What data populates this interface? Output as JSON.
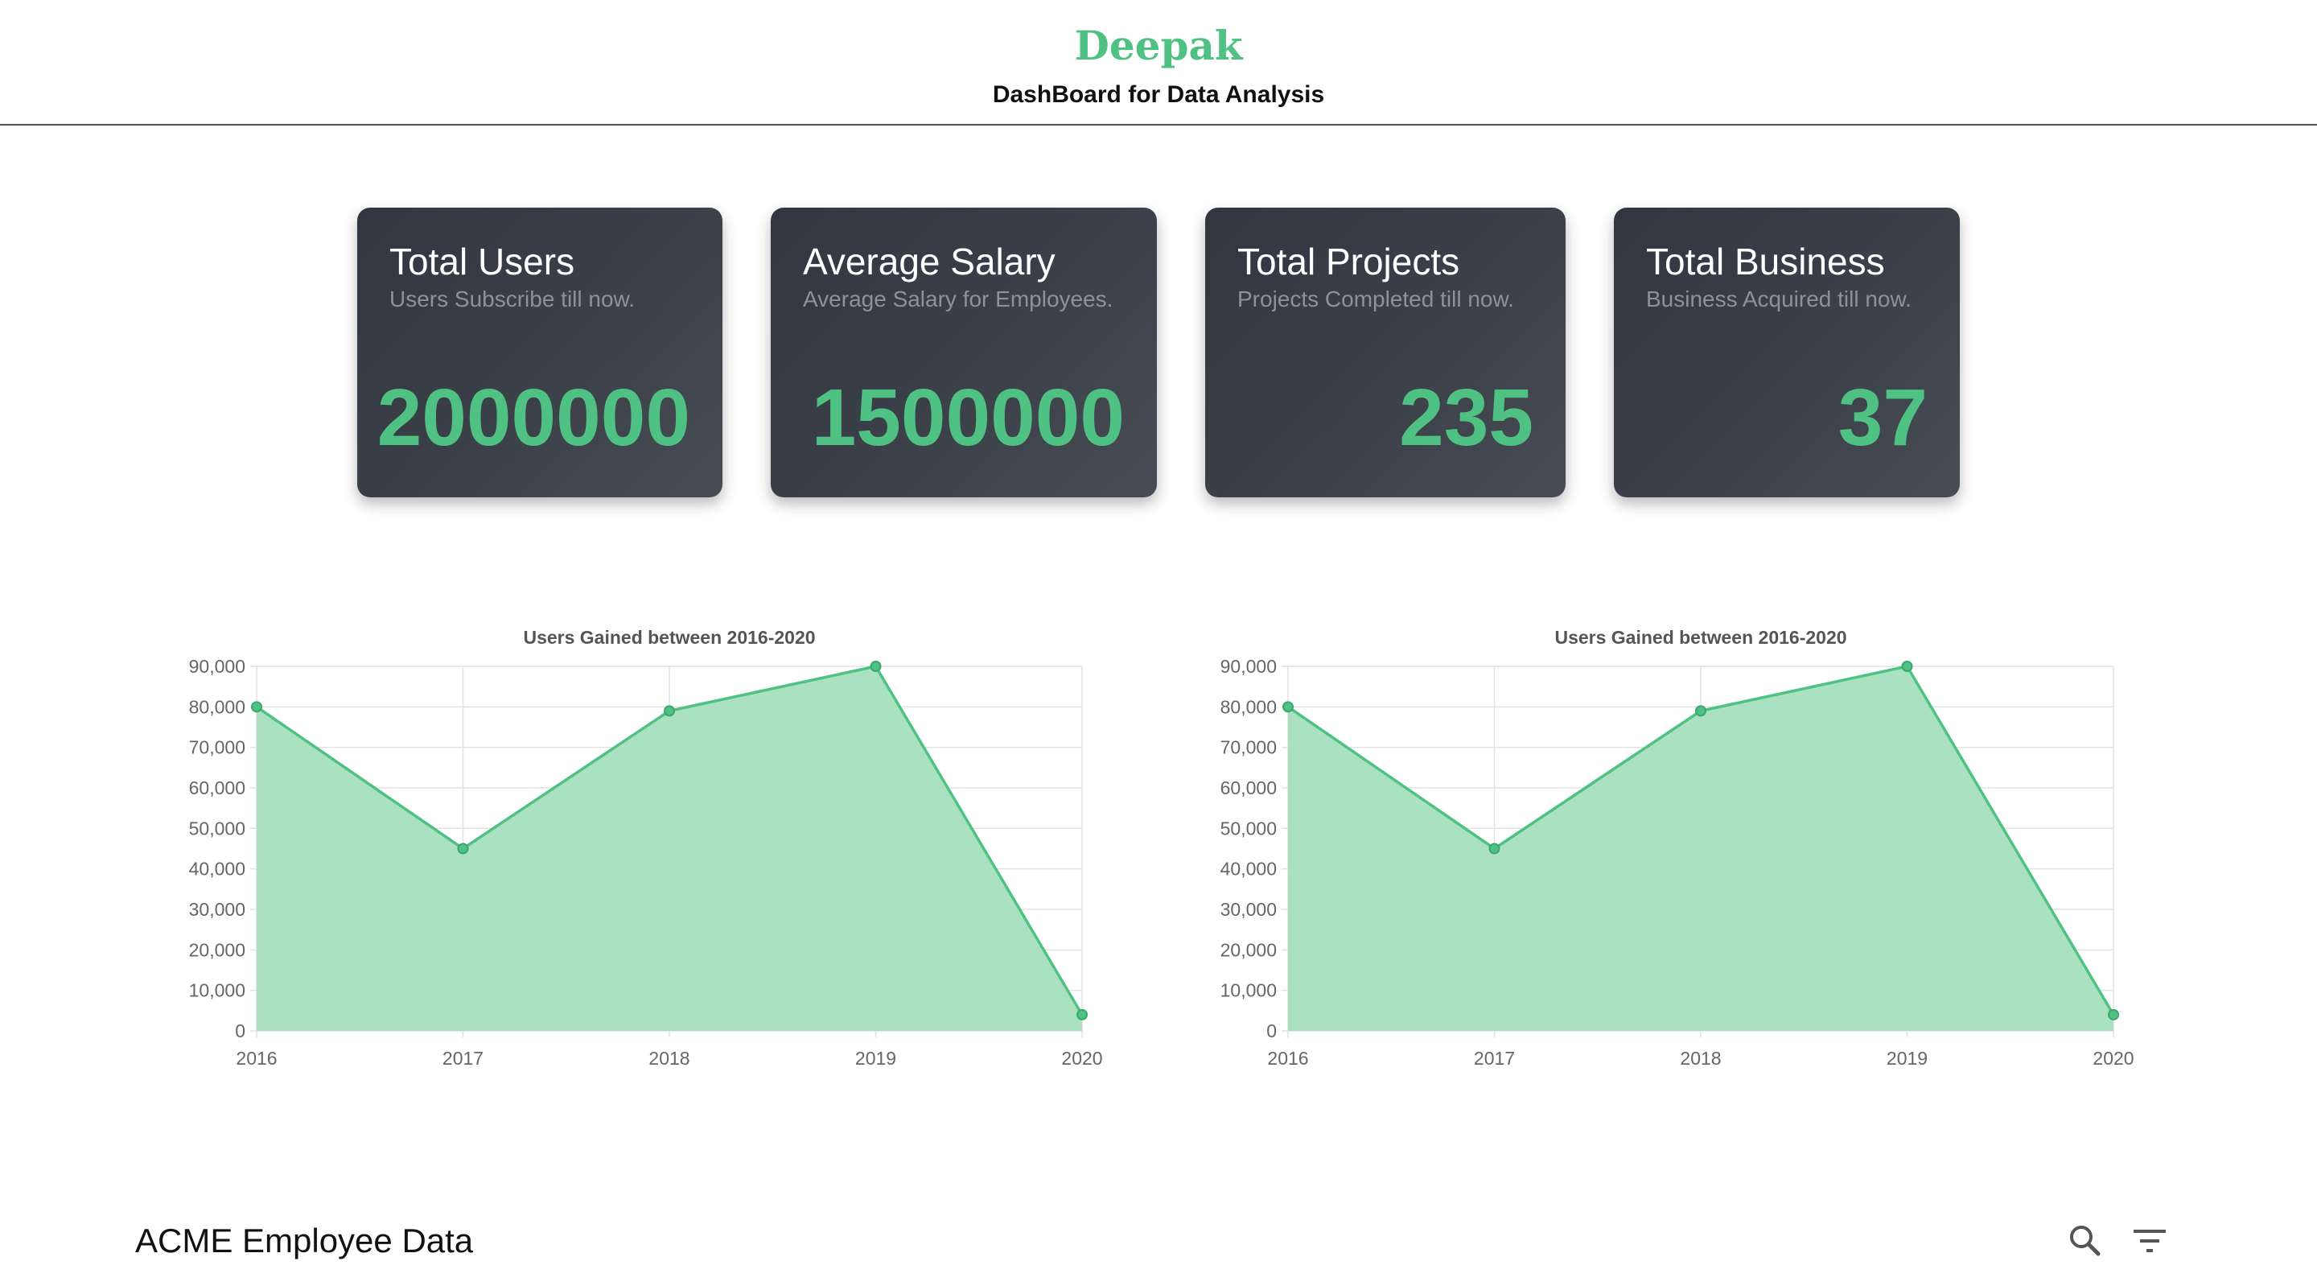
{
  "header": {
    "brand": "Deepak",
    "subtitle": "DashBoard for Data Analysis"
  },
  "cards": [
    {
      "title": "Total Users",
      "subtitle": "Users Subscribe till now.",
      "value": "2000000"
    },
    {
      "title": "Average Salary",
      "subtitle": "Average Salary for Employees.",
      "value": "1500000"
    },
    {
      "title": "Total Projects",
      "subtitle": "Projects Completed till now.",
      "value": "235"
    },
    {
      "title": "Total Business",
      "subtitle": "Business Acquired till now.",
      "value": "37"
    }
  ],
  "colors": {
    "accent": "#4fc283",
    "fill": "#a4dfbe",
    "card_bg": "#3c414a"
  },
  "chart_data": [
    {
      "type": "area",
      "title": "Users Gained between 2016-2020",
      "x": [
        "2016",
        "2017",
        "2018",
        "2019",
        "2020"
      ],
      "series": [
        {
          "values": [
            80000,
            45000,
            79000,
            90000,
            4000
          ]
        }
      ],
      "ylim": [
        0,
        90000
      ],
      "yticks": [
        "0",
        "10,000",
        "20,000",
        "30,000",
        "40,000",
        "50,000",
        "60,000",
        "70,000",
        "80,000",
        "90,000"
      ],
      "grid": true
    },
    {
      "type": "area",
      "title": "Users Gained between 2016-2020",
      "x": [
        "2016",
        "2017",
        "2018",
        "2019",
        "2020"
      ],
      "series": [
        {
          "values": [
            80000,
            45000,
            79000,
            90000,
            4000
          ]
        }
      ],
      "ylim": [
        0,
        90000
      ],
      "yticks": [
        "0",
        "10,000",
        "20,000",
        "30,000",
        "40,000",
        "50,000",
        "60,000",
        "70,000",
        "80,000",
        "90,000"
      ],
      "grid": true
    }
  ],
  "table": {
    "title": "ACME Employee Data",
    "icons": [
      "search-icon",
      "filter-icon"
    ]
  }
}
